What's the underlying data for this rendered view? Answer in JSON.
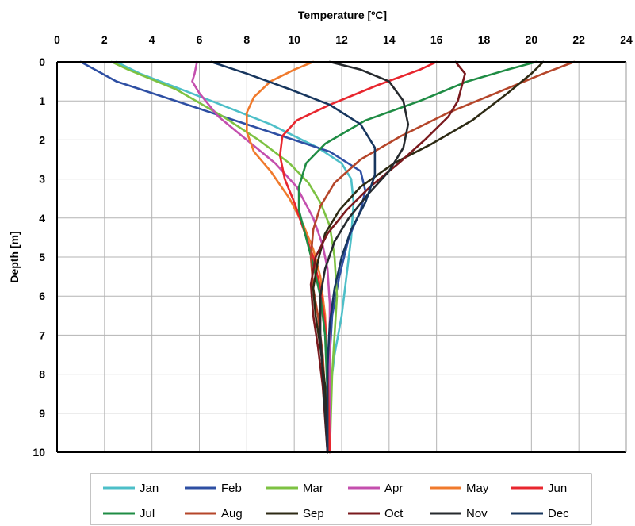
{
  "chart_data": {
    "type": "line",
    "xlabel": "Temperature [ºC]",
    "ylabel": "Depth [m]",
    "xlim": [
      0,
      24
    ],
    "ylim": [
      0,
      10
    ],
    "y_inverted": true,
    "x_axis_position": "top",
    "x_ticks": [
      0,
      2,
      4,
      6,
      8,
      10,
      12,
      14,
      16,
      18,
      20,
      22,
      24
    ],
    "y_ticks": [
      0,
      1,
      2,
      3,
      4,
      5,
      6,
      7,
      8,
      9,
      10
    ],
    "grid": true,
    "legend_position": "bottom",
    "series": [
      {
        "name": "Jan",
        "color": "#4dbfc8",
        "points": [
          [
            2.5,
            0
          ],
          [
            3.5,
            0.3
          ],
          [
            6.5,
            1
          ],
          [
            9,
            1.6
          ],
          [
            11,
            2.2
          ],
          [
            12,
            2.6
          ],
          [
            12.4,
            3
          ],
          [
            12.5,
            3.6
          ],
          [
            12.4,
            4.5
          ],
          [
            12.2,
            5.5
          ],
          [
            12,
            6.5
          ],
          [
            11.7,
            7.5
          ],
          [
            11.5,
            8.5
          ],
          [
            11.4,
            10
          ]
        ]
      },
      {
        "name": "Feb",
        "color": "#2e4fa3",
        "points": [
          [
            1,
            0
          ],
          [
            2.5,
            0.5
          ],
          [
            6,
            1.2
          ],
          [
            9,
            1.8
          ],
          [
            11.5,
            2.3
          ],
          [
            12.8,
            2.8
          ],
          [
            13,
            3.3
          ],
          [
            12.8,
            3.8
          ],
          [
            12.3,
            4.5
          ],
          [
            11.9,
            5.5
          ],
          [
            11.6,
            6.5
          ],
          [
            11.5,
            7.5
          ],
          [
            11.4,
            8.5
          ],
          [
            11.4,
            10
          ]
        ]
      },
      {
        "name": "Mar",
        "color": "#7dc242",
        "points": [
          [
            2.3,
            0
          ],
          [
            3,
            0.2
          ],
          [
            5,
            0.7
          ],
          [
            7,
            1.4
          ],
          [
            8.5,
            2
          ],
          [
            9.8,
            2.6
          ],
          [
            10.6,
            3.1
          ],
          [
            11.1,
            3.6
          ],
          [
            11.5,
            4.2
          ],
          [
            11.7,
            5
          ],
          [
            11.8,
            6
          ],
          [
            11.7,
            7
          ],
          [
            11.6,
            8
          ],
          [
            11.5,
            10
          ]
        ]
      },
      {
        "name": "Apr",
        "color": "#c44fae",
        "points": [
          [
            5.9,
            0
          ],
          [
            5.8,
            0.3
          ],
          [
            5.7,
            0.5
          ],
          [
            6,
            0.8
          ],
          [
            6.8,
            1.4
          ],
          [
            8,
            2
          ],
          [
            9.2,
            2.6
          ],
          [
            10.1,
            3.2
          ],
          [
            10.8,
            4
          ],
          [
            11.2,
            4.7
          ],
          [
            11.4,
            5.3
          ],
          [
            11.5,
            6.2
          ],
          [
            11.5,
            7.5
          ],
          [
            11.5,
            10
          ]
        ]
      },
      {
        "name": "May",
        "color": "#f07a2c",
        "points": [
          [
            10.8,
            0
          ],
          [
            10,
            0.2
          ],
          [
            9,
            0.5
          ],
          [
            8.3,
            0.9
          ],
          [
            8,
            1.3
          ],
          [
            8,
            1.8
          ],
          [
            8.3,
            2.3
          ],
          [
            9,
            2.8
          ],
          [
            9.8,
            3.5
          ],
          [
            10.4,
            4.2
          ],
          [
            10.8,
            4.8
          ],
          [
            11.1,
            5.5
          ],
          [
            11.3,
            6.5
          ],
          [
            11.4,
            8
          ],
          [
            11.5,
            10
          ]
        ]
      },
      {
        "name": "Jun",
        "color": "#e8262e",
        "points": [
          [
            16,
            0
          ],
          [
            15.3,
            0.2
          ],
          [
            13.5,
            0.6
          ],
          [
            11.5,
            1.1
          ],
          [
            10.1,
            1.5
          ],
          [
            9.5,
            1.9
          ],
          [
            9.4,
            2.4
          ],
          [
            9.6,
            3
          ],
          [
            10,
            3.6
          ],
          [
            10.4,
            4.3
          ],
          [
            10.8,
            5
          ],
          [
            11.1,
            5.8
          ],
          [
            11.3,
            6.7
          ],
          [
            11.4,
            7.8
          ],
          [
            11.5,
            10
          ]
        ]
      },
      {
        "name": "Jul",
        "color": "#1f8c44",
        "points": [
          [
            20.2,
            0
          ],
          [
            19,
            0.2
          ],
          [
            17.3,
            0.5
          ],
          [
            15.3,
            1
          ],
          [
            13,
            1.5
          ],
          [
            11.3,
            2.1
          ],
          [
            10.5,
            2.6
          ],
          [
            10.2,
            3.2
          ],
          [
            10.2,
            3.8
          ],
          [
            10.5,
            4.5
          ],
          [
            10.8,
            5.2
          ],
          [
            11.1,
            6
          ],
          [
            11.3,
            7
          ],
          [
            11.4,
            8.5
          ],
          [
            11.4,
            10
          ]
        ]
      },
      {
        "name": "Aug",
        "color": "#b5462a",
        "points": [
          [
            21.8,
            0
          ],
          [
            20.5,
            0.3
          ],
          [
            18.5,
            0.8
          ],
          [
            16.5,
            1.3
          ],
          [
            14.5,
            1.9
          ],
          [
            12.8,
            2.5
          ],
          [
            11.7,
            3.1
          ],
          [
            11.1,
            3.7
          ],
          [
            10.8,
            4.3
          ],
          [
            10.7,
            5
          ],
          [
            10.8,
            5.8
          ],
          [
            11,
            6.5
          ],
          [
            11.2,
            7.5
          ],
          [
            11.3,
            8.5
          ],
          [
            11.4,
            10
          ]
        ]
      },
      {
        "name": "Sep",
        "color": "#2d2a14",
        "points": [
          [
            20.5,
            0
          ],
          [
            20,
            0.3
          ],
          [
            19,
            0.8
          ],
          [
            17.5,
            1.5
          ],
          [
            15.8,
            2.1
          ],
          [
            14.2,
            2.6
          ],
          [
            12.8,
            3.2
          ],
          [
            11.9,
            3.8
          ],
          [
            11.3,
            4.4
          ],
          [
            11,
            5.1
          ],
          [
            10.8,
            5.8
          ],
          [
            10.9,
            6.5
          ],
          [
            11.1,
            7.3
          ],
          [
            11.3,
            8.3
          ],
          [
            11.4,
            10
          ]
        ]
      },
      {
        "name": "Oct",
        "color": "#7a1a1e",
        "points": [
          [
            16.8,
            0
          ],
          [
            17.2,
            0.3
          ],
          [
            16.9,
            1
          ],
          [
            16.5,
            1.4
          ],
          [
            15.5,
            2
          ],
          [
            14.4,
            2.6
          ],
          [
            13.2,
            3.2
          ],
          [
            12.2,
            3.8
          ],
          [
            11.4,
            4.4
          ],
          [
            10.9,
            5
          ],
          [
            10.7,
            5.7
          ],
          [
            10.8,
            6.5
          ],
          [
            11,
            7.3
          ],
          [
            11.2,
            8.3
          ],
          [
            11.4,
            10
          ]
        ]
      },
      {
        "name": "Nov",
        "color": "#262a2e",
        "points": [
          [
            11.5,
            0
          ],
          [
            12.8,
            0.2
          ],
          [
            14,
            0.5
          ],
          [
            14.6,
            1
          ],
          [
            14.8,
            1.6
          ],
          [
            14.6,
            2.2
          ],
          [
            14,
            2.8
          ],
          [
            13.1,
            3.4
          ],
          [
            12.3,
            4
          ],
          [
            11.7,
            4.6
          ],
          [
            11.3,
            5.3
          ],
          [
            11.1,
            6
          ],
          [
            11.1,
            7
          ],
          [
            11.2,
            8
          ],
          [
            11.3,
            9
          ],
          [
            11.4,
            10
          ]
        ]
      },
      {
        "name": "Dec",
        "color": "#17365e",
        "points": [
          [
            6.5,
            0
          ],
          [
            8,
            0.3
          ],
          [
            9.8,
            0.7
          ],
          [
            11.5,
            1.1
          ],
          [
            12.8,
            1.6
          ],
          [
            13.4,
            2.2
          ],
          [
            13.4,
            2.9
          ],
          [
            13,
            3.6
          ],
          [
            12.4,
            4.3
          ],
          [
            12,
            5
          ],
          [
            11.7,
            5.8
          ],
          [
            11.5,
            6.7
          ],
          [
            11.4,
            7.8
          ],
          [
            11.4,
            9
          ],
          [
            11.4,
            10
          ]
        ]
      }
    ]
  }
}
